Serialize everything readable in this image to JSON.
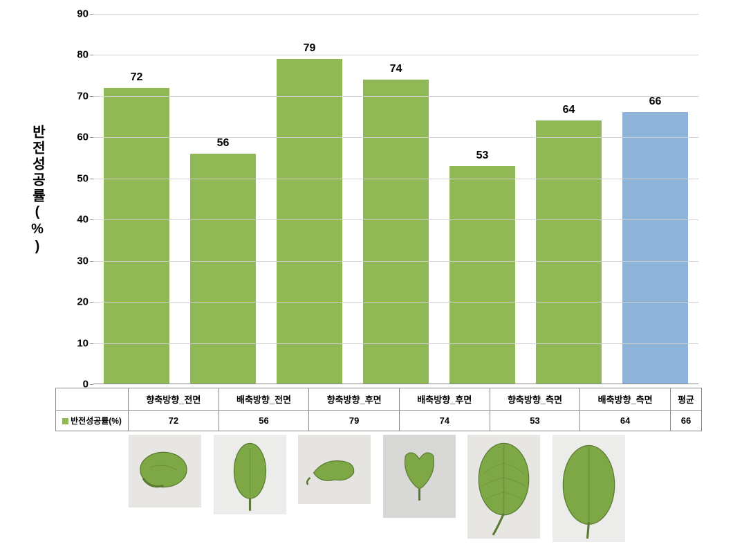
{
  "chart": {
    "type": "bar",
    "y_axis_label": "반전성공률(%)",
    "ylim": [
      0,
      90
    ],
    "ytick_step": 10,
    "yticks": [
      0,
      10,
      20,
      30,
      40,
      50,
      60,
      70,
      80,
      90
    ],
    "background_color": "#ffffff",
    "grid_color": "#d0d0d0",
    "axis_color": "#888888",
    "bar_width": 0.76,
    "categories": [
      "향축방향_전면",
      "배축방향_전면",
      "향축방향_후면",
      "배축방향_후면",
      "향축방향_측면",
      "배축방향_측면",
      "평균"
    ],
    "values": [
      72,
      56,
      79,
      74,
      53,
      64,
      66
    ],
    "bar_colors": [
      "#90b855",
      "#90b855",
      "#90b855",
      "#90b855",
      "#90b855",
      "#90b855",
      "#8fb4d9"
    ],
    "value_label_fontsize": 16,
    "axis_label_fontsize": 20,
    "tick_label_fontsize": 15
  },
  "table": {
    "header_blank": "",
    "row_label": "반전성공률(%)",
    "legend_marker_color": "#90b855",
    "columns": [
      "향축방향_전면",
      "배축방향_전면",
      "향축방향_후면",
      "배축방향_후면",
      "향축방향_측면",
      "배축방향_측면",
      "평균"
    ],
    "row_values": [
      "72",
      "56",
      "79",
      "74",
      "53",
      "64",
      "66"
    ]
  },
  "leaves": {
    "count": 6,
    "leaf_fill": "#7da845",
    "leaf_stroke": "#5a7a32",
    "backgrounds": [
      "#e8e6e2",
      "#ececea",
      "#e6e4e0",
      "#d8d8d6",
      "#e8e6e2",
      "#ececea"
    ],
    "heights": [
      105,
      115,
      100,
      120,
      150,
      155
    ]
  }
}
